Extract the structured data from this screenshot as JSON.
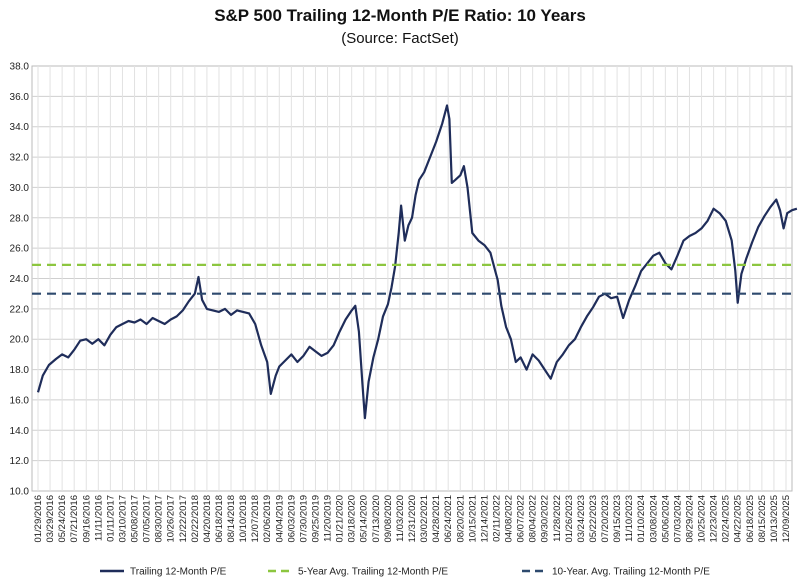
{
  "chart_data": {
    "type": "line",
    "title": "S&P 500 Trailing 12-Month P/E Ratio: 10 Years",
    "subtitle": "(Source: FactSet)",
    "ylim": [
      10.0,
      38.0
    ],
    "yticks": [
      "10.0",
      "12.0",
      "14.0",
      "16.0",
      "18.0",
      "20.0",
      "22.0",
      "24.0",
      "26.0",
      "28.0",
      "30.0",
      "32.0",
      "34.0",
      "36.0",
      "38.0"
    ],
    "xticks": [
      "01/29/2016",
      "03/29/2016",
      "05/24/2016",
      "07/21/2016",
      "09/16/2016",
      "11/11/2016",
      "01/11/2017",
      "03/10/2017",
      "05/08/2017",
      "07/05/2017",
      "08/30/2017",
      "10/26/2017",
      "12/22/2017",
      "02/22/2018",
      "04/20/2018",
      "06/18/2018",
      "08/14/2018",
      "10/10/2018",
      "12/07/2018",
      "02/06/2019",
      "04/04/2019",
      "06/03/2019",
      "07/30/2019",
      "09/25/2019",
      "11/20/2019",
      "01/21/2020",
      "03/18/2020",
      "05/14/2020",
      "07/13/2020",
      "09/08/2020",
      "11/03/2020",
      "12/31/2020",
      "03/02/2021",
      "04/28/2021",
      "06/24/2021",
      "08/20/2021",
      "10/15/2021",
      "12/14/2021",
      "02/11/2022",
      "04/08/2022",
      "06/07/2022",
      "08/04/2022",
      "09/30/2022",
      "11/28/2022",
      "01/26/2023",
      "03/24/2023",
      "05/22/2023",
      "07/20/2023",
      "09/15/2023",
      "11/10/2023",
      "01/10/2024",
      "03/08/2024",
      "05/06/2024",
      "07/03/2024",
      "08/29/2024",
      "10/25/2024",
      "12/23/2024",
      "02/24/2025",
      "04/22/2025",
      "06/18/2025",
      "08/15/2025",
      "10/13/2025",
      "12/09/2025"
    ],
    "grid": true,
    "legend_position": "bottom",
    "series": [
      {
        "name": "Trailing 12-Month P/E",
        "color": "#1f2d5a",
        "style": "solid",
        "points": [
          [
            0,
            16.5
          ],
          [
            0.4,
            17.6
          ],
          [
            0.9,
            18.3
          ],
          [
            1.5,
            18.7
          ],
          [
            2,
            19.0
          ],
          [
            2.5,
            18.8
          ],
          [
            3,
            19.3
          ],
          [
            3.5,
            19.9
          ],
          [
            4,
            20.0
          ],
          [
            4.5,
            19.7
          ],
          [
            5,
            20.0
          ],
          [
            5.5,
            19.6
          ],
          [
            6,
            20.3
          ],
          [
            6.5,
            20.8
          ],
          [
            7,
            21.0
          ],
          [
            7.5,
            21.2
          ],
          [
            8,
            21.1
          ],
          [
            8.5,
            21.3
          ],
          [
            9,
            21.0
          ],
          [
            9.5,
            21.4
          ],
          [
            10,
            21.2
          ],
          [
            10.5,
            21.0
          ],
          [
            11,
            21.3
          ],
          [
            11.5,
            21.5
          ],
          [
            12,
            21.9
          ],
          [
            12.5,
            22.5
          ],
          [
            13,
            23.0
          ],
          [
            13.3,
            24.1
          ],
          [
            13.6,
            22.6
          ],
          [
            14,
            22.0
          ],
          [
            14.5,
            21.9
          ],
          [
            15,
            21.8
          ],
          [
            15.5,
            22.0
          ],
          [
            16,
            21.6
          ],
          [
            16.5,
            21.9
          ],
          [
            17,
            21.8
          ],
          [
            17.5,
            21.7
          ],
          [
            18,
            21.0
          ],
          [
            18.5,
            19.6
          ],
          [
            19,
            18.5
          ],
          [
            19.3,
            16.4
          ],
          [
            19.7,
            17.6
          ],
          [
            20,
            18.2
          ],
          [
            20.5,
            18.6
          ],
          [
            21,
            19.0
          ],
          [
            21.5,
            18.5
          ],
          [
            22,
            18.9
          ],
          [
            22.5,
            19.5
          ],
          [
            23,
            19.2
          ],
          [
            23.5,
            18.9
          ],
          [
            24,
            19.1
          ],
          [
            24.5,
            19.6
          ],
          [
            25,
            20.5
          ],
          [
            25.5,
            21.3
          ],
          [
            26,
            21.9
          ],
          [
            26.3,
            22.2
          ],
          [
            26.6,
            20.5
          ],
          [
            26.9,
            17.0
          ],
          [
            27.1,
            14.8
          ],
          [
            27.4,
            17.2
          ],
          [
            27.8,
            18.8
          ],
          [
            28.2,
            20.0
          ],
          [
            28.6,
            21.5
          ],
          [
            29,
            22.3
          ],
          [
            29.3,
            23.4
          ],
          [
            29.6,
            24.8
          ],
          [
            29.9,
            27.0
          ],
          [
            30.1,
            28.8
          ],
          [
            30.4,
            26.5
          ],
          [
            30.7,
            27.5
          ],
          [
            31,
            28.0
          ],
          [
            31.3,
            29.5
          ],
          [
            31.6,
            30.5
          ],
          [
            32,
            31.0
          ],
          [
            32.5,
            32.0
          ],
          [
            33,
            33.0
          ],
          [
            33.5,
            34.2
          ],
          [
            33.9,
            35.4
          ],
          [
            34.1,
            34.5
          ],
          [
            34.3,
            30.3
          ],
          [
            34.6,
            30.5
          ],
          [
            35,
            30.8
          ],
          [
            35.3,
            31.4
          ],
          [
            35.6,
            30.0
          ],
          [
            36,
            27.0
          ],
          [
            36.5,
            26.5
          ],
          [
            37,
            26.2
          ],
          [
            37.5,
            25.7
          ],
          [
            37.9,
            24.5
          ],
          [
            38.1,
            23.9
          ],
          [
            38.4,
            22.2
          ],
          [
            38.8,
            20.8
          ],
          [
            39.2,
            20.0
          ],
          [
            39.6,
            18.5
          ],
          [
            40,
            18.8
          ],
          [
            40.5,
            18.0
          ],
          [
            41,
            19.0
          ],
          [
            41.5,
            18.6
          ],
          [
            42,
            18.0
          ],
          [
            42.5,
            17.4
          ],
          [
            43,
            18.5
          ],
          [
            43.5,
            19.0
          ],
          [
            44,
            19.6
          ],
          [
            44.5,
            20.0
          ],
          [
            45,
            20.8
          ],
          [
            45.5,
            21.5
          ],
          [
            46,
            22.1
          ],
          [
            46.5,
            22.8
          ],
          [
            47,
            23.0
          ],
          [
            47.5,
            22.7
          ],
          [
            48,
            22.8
          ],
          [
            48.5,
            21.4
          ],
          [
            49,
            22.6
          ],
          [
            49.5,
            23.5
          ],
          [
            50,
            24.5
          ],
          [
            50.5,
            25.0
          ],
          [
            51,
            25.5
          ],
          [
            51.5,
            25.7
          ],
          [
            52,
            25.0
          ],
          [
            52.5,
            24.6
          ],
          [
            53,
            25.5
          ],
          [
            53.5,
            26.5
          ],
          [
            54,
            26.8
          ],
          [
            54.5,
            27.0
          ],
          [
            55,
            27.3
          ],
          [
            55.5,
            27.8
          ],
          [
            56,
            28.6
          ],
          [
            56.5,
            28.3
          ],
          [
            57,
            27.8
          ],
          [
            57.5,
            26.5
          ],
          [
            57.8,
            24.5
          ],
          [
            58,
            22.4
          ],
          [
            58.3,
            24.3
          ],
          [
            58.7,
            25.3
          ],
          [
            59.2,
            26.4
          ],
          [
            59.7,
            27.4
          ],
          [
            60.2,
            28.1
          ],
          [
            60.7,
            28.7
          ],
          [
            61.2,
            29.2
          ],
          [
            61.5,
            28.5
          ],
          [
            61.8,
            27.3
          ],
          [
            62.1,
            28.3
          ],
          [
            62.5,
            28.5
          ],
          [
            62.9,
            28.6
          ]
        ]
      },
      {
        "name": "5-Year Avg. Trailing 12-Month P/E",
        "color": "#8cc63f",
        "style": "dashed",
        "value": 24.9
      },
      {
        "name": "10-Year. Avg. Trailing 12-Month P/E",
        "color": "#2e4a6e",
        "style": "dashed",
        "value": 23.0
      }
    ]
  }
}
